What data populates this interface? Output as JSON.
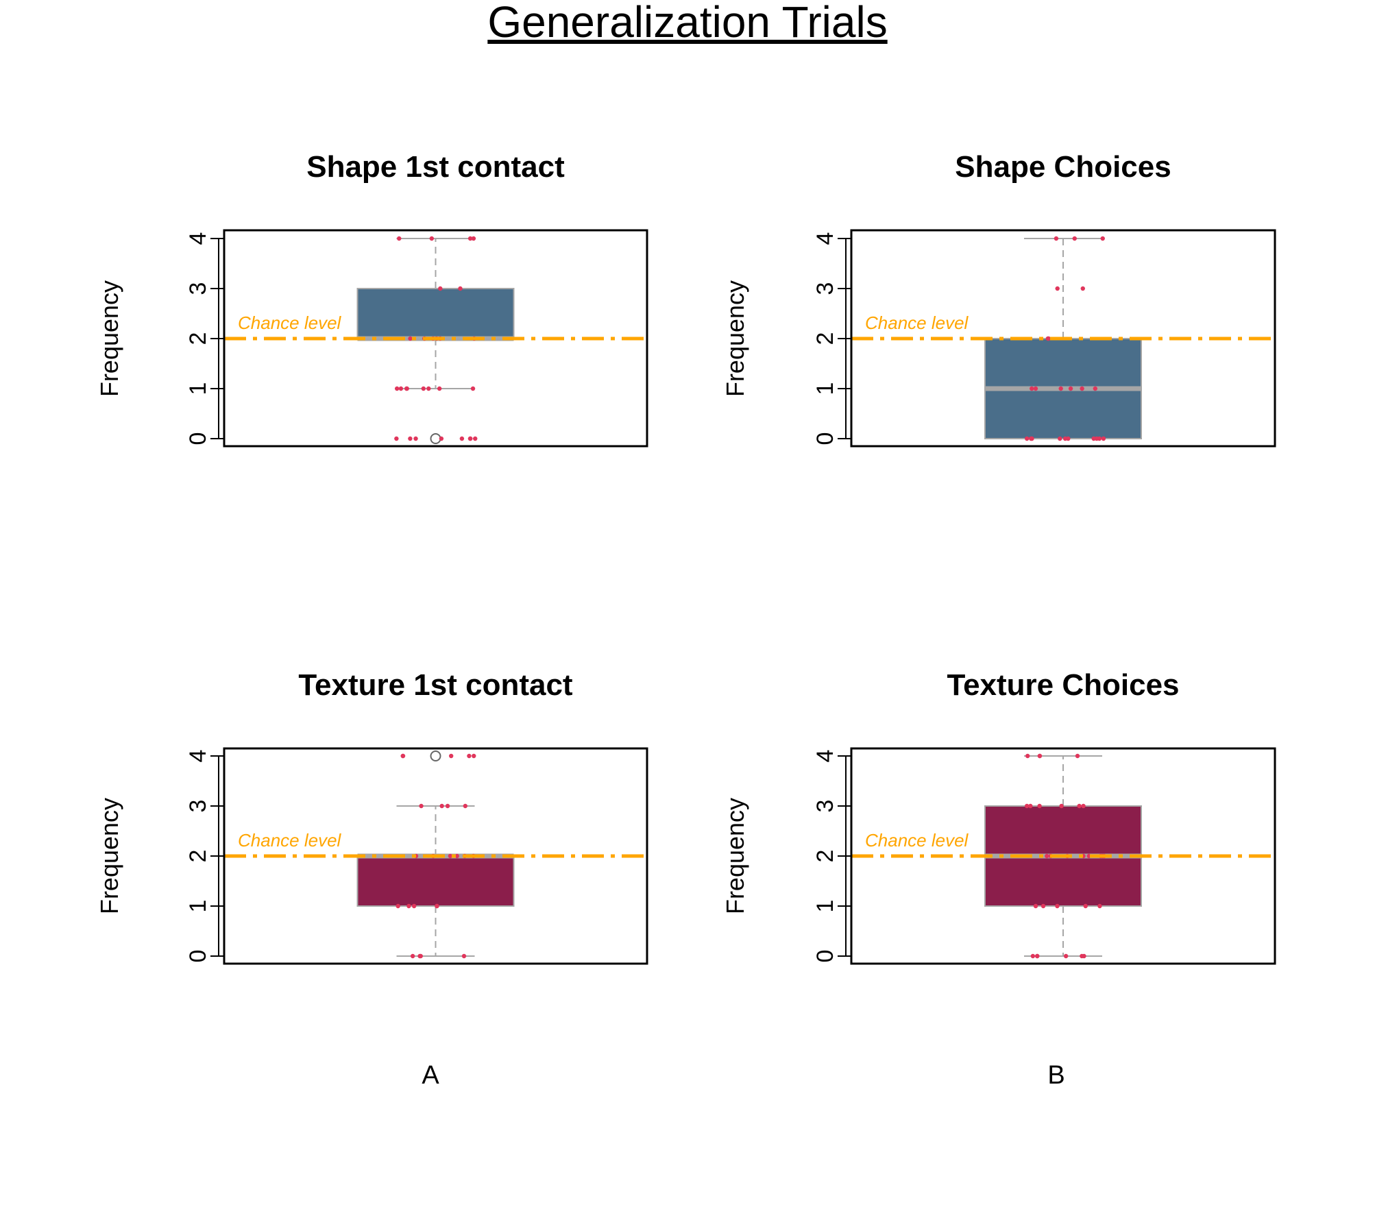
{
  "figure": {
    "title": "Generalization Trials",
    "panel_letters": [
      "A",
      "B"
    ]
  },
  "colors": {
    "shape_box": "#4a6e8a",
    "texture_box": "#8b1e4b",
    "median": "#a6a6a6",
    "whisker": "#a6a6a6",
    "points": "#e0365c",
    "chance_line": "#ffa500",
    "chance_label": "#ffa500"
  },
  "chart_data": [
    {
      "type": "box",
      "title": "Shape 1st contact",
      "ylabel": "Frequency",
      "ylim": [
        0,
        4
      ],
      "yticks": [
        0,
        1,
        2,
        3,
        4
      ],
      "chance_level": 2,
      "chance_label": "Chance level",
      "box": {
        "whisker_low": 1,
        "q1": 2,
        "median": 2,
        "q3": 3,
        "whisker_high": 4,
        "outliers": [
          0
        ]
      },
      "points": [
        0,
        0,
        0,
        0,
        0,
        0,
        0,
        0,
        1,
        1,
        1,
        1,
        1,
        1,
        1,
        1,
        2,
        2,
        2,
        2,
        2,
        2,
        3,
        3,
        4,
        4,
        4,
        4
      ]
    },
    {
      "type": "box",
      "title": "Shape Choices",
      "ylabel": "Frequency",
      "ylim": [
        0,
        4
      ],
      "yticks": [
        0,
        1,
        2,
        3,
        4
      ],
      "chance_level": 2,
      "chance_label": "Chance level",
      "box": {
        "whisker_low": 0,
        "q1": 0,
        "median": 1,
        "q3": 2,
        "whisker_high": 4,
        "outliers": []
      },
      "points": [
        0,
        0,
        0,
        0,
        0,
        0,
        0,
        0,
        0,
        0,
        1,
        1,
        1,
        1,
        1,
        1,
        2,
        2,
        3,
        3,
        4,
        4,
        4
      ]
    },
    {
      "type": "box",
      "title": "Texture 1st contact",
      "ylabel": "Frequency",
      "ylim": [
        0,
        4
      ],
      "yticks": [
        0,
        1,
        2,
        3,
        4
      ],
      "chance_level": 2,
      "chance_label": "Chance level",
      "box": {
        "whisker_low": 0,
        "q1": 1,
        "median": 2,
        "q3": 2,
        "whisker_high": 3,
        "outliers": [
          4
        ]
      },
      "points": [
        0,
        0,
        0,
        0,
        1,
        1,
        1,
        1,
        1,
        2,
        2,
        2,
        2,
        2,
        2,
        3,
        3,
        3,
        3,
        4,
        4,
        4,
        4,
        4
      ]
    },
    {
      "type": "box",
      "title": "Texture Choices",
      "ylabel": "Frequency",
      "ylim": [
        0,
        4
      ],
      "yticks": [
        0,
        1,
        2,
        3,
        4
      ],
      "chance_level": 2,
      "chance_label": "Chance level",
      "box": {
        "whisker_low": 0,
        "q1": 1,
        "median": 2,
        "q3": 3,
        "whisker_high": 4,
        "outliers": []
      },
      "points": [
        0,
        0,
        0,
        0,
        0,
        0,
        1,
        1,
        1,
        1,
        1,
        2,
        2,
        2,
        2,
        2,
        2,
        2,
        2,
        3,
        3,
        3,
        3,
        3,
        3,
        4,
        4,
        4,
        4
      ]
    }
  ]
}
